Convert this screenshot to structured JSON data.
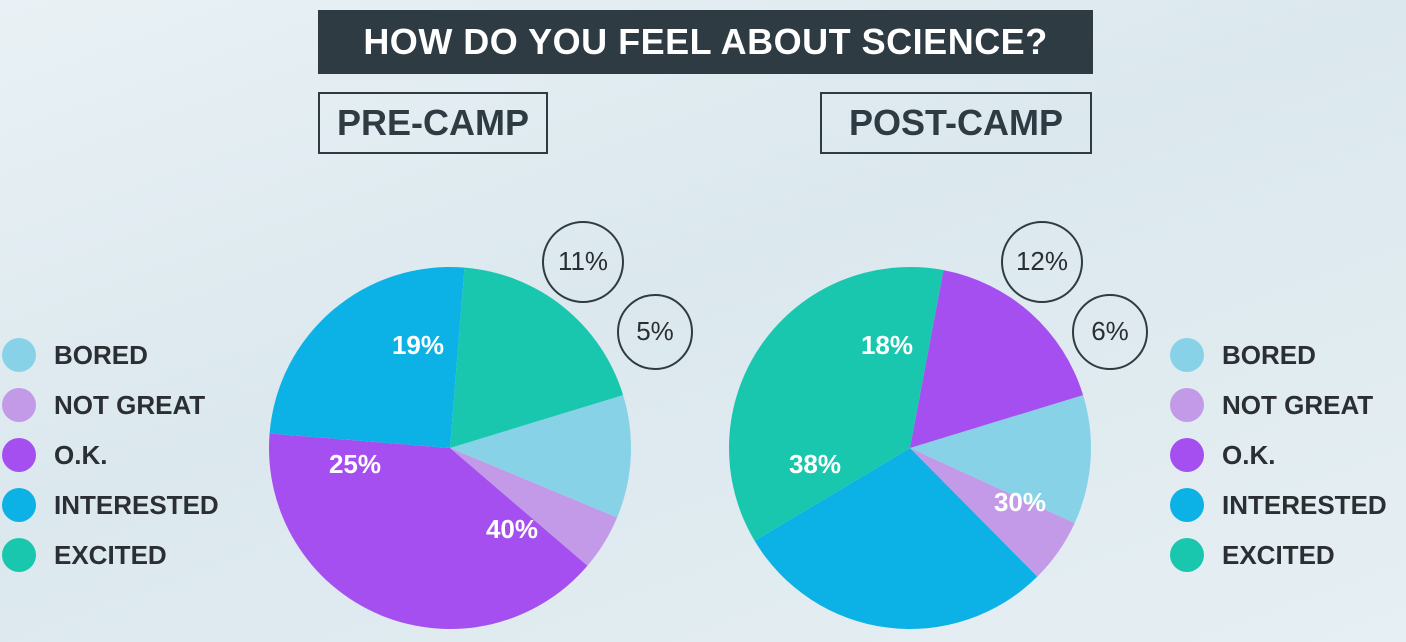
{
  "title": "HOW DO YOU FEEL ABOUT SCIENCE?",
  "legend": [
    {
      "label": "BORED",
      "color": "#88d2e8"
    },
    {
      "label": "NOT GREAT",
      "color": "#c39ae8"
    },
    {
      "label": "O.K.",
      "color": "#a64ff0"
    },
    {
      "label": "INTERESTED",
      "color": "#0cb2e6"
    },
    {
      "label": "EXCITED",
      "color": "#19c7ae"
    }
  ],
  "chart_data": [
    {
      "type": "pie",
      "title": "PRE-CAMP",
      "slices": [
        {
          "category": "BORED",
          "value": 11,
          "label": "11%"
        },
        {
          "category": "NOT GREAT",
          "value": 5,
          "label": "5%"
        },
        {
          "category": "O.K.",
          "value": 40,
          "label": "40%"
        },
        {
          "category": "INTERESTED",
          "value": 25,
          "label": "25%"
        },
        {
          "category": "EXCITED",
          "value": 19,
          "label": "19%"
        }
      ]
    },
    {
      "type": "pie",
      "title": "POST-CAMP",
      "slices": [
        {
          "category": "BORED",
          "value": 12,
          "label": "12%"
        },
        {
          "category": "NOT GREAT",
          "value": 6,
          "label": "6%"
        },
        {
          "category": "INTERESTED",
          "value": 30,
          "label": "30%"
        },
        {
          "category": "EXCITED",
          "value": 38,
          "label": "38%"
        },
        {
          "category": "O.K.",
          "value": 18,
          "label": "18%"
        }
      ]
    }
  ]
}
